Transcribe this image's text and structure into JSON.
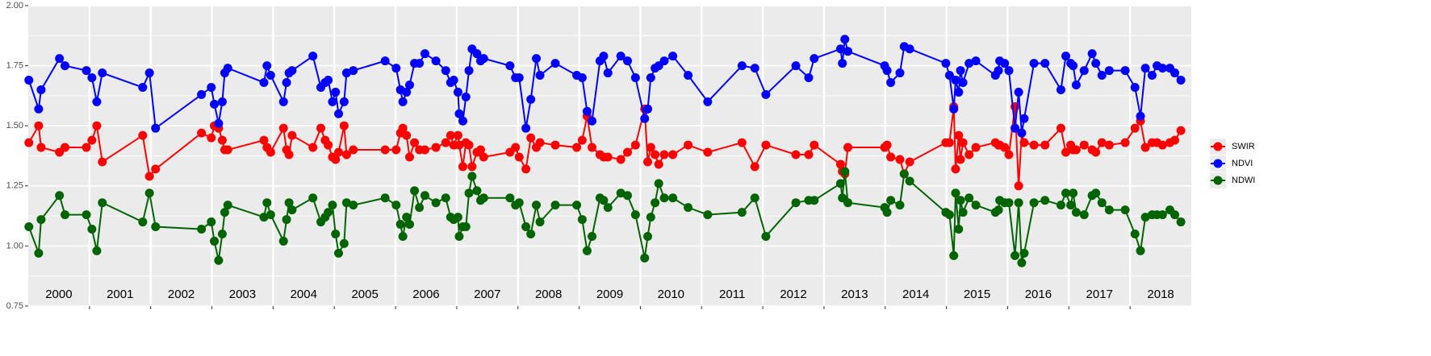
{
  "chart_data": {
    "type": "line",
    "x": [
      2000.01,
      2000.17,
      2000.21,
      2000.51,
      2000.6,
      2000.95,
      2001.04,
      2001.12,
      2001.21,
      2001.87,
      2001.98,
      2002.08,
      2002.83,
      2002.99,
      2003.04,
      2003.11,
      2003.17,
      2003.21,
      2003.26,
      2003.85,
      2003.9,
      2003.96,
      2004.17,
      2004.22,
      2004.26,
      2004.31,
      2004.65,
      2004.78,
      2004.85,
      2004.9,
      2004.97,
      2005.02,
      2005.07,
      2005.16,
      2005.2,
      2005.31,
      2005.83,
      2006.01,
      2006.08,
      2006.12,
      2006.18,
      2006.23,
      2006.31,
      2006.39,
      2006.48,
      2006.66,
      2006.82,
      2006.9,
      2006.95,
      2007.02,
      2007.04,
      2007.1,
      2007.15,
      2007.2,
      2007.25,
      2007.33,
      2007.39,
      2007.44,
      2007.87,
      2007.96,
      2008.02,
      2008.13,
      2008.21,
      2008.3,
      2008.36,
      2008.61,
      2008.96,
      2009.05,
      2009.13,
      2009.21,
      2009.34,
      2009.4,
      2009.47,
      2009.68,
      2009.79,
      2009.92,
      2010.07,
      2010.12,
      2010.17,
      2010.24,
      2010.3,
      2010.39,
      2010.53,
      2010.78,
      2011.1,
      2011.66,
      2011.87,
      2012.05,
      2012.54,
      2012.75,
      2012.84,
      2013.27,
      2013.3,
      2013.34,
      2013.39,
      2013.99,
      2014.03,
      2014.09,
      2014.24,
      2014.31,
      2014.4,
      2014.99,
      2015.05,
      2015.12,
      2015.15,
      2015.2,
      2015.23,
      2015.27,
      2015.37,
      2015.48,
      2015.8,
      2015.85,
      2015.87,
      2015.95,
      2016.02,
      2016.12,
      2016.18,
      2016.23,
      2016.27,
      2016.43,
      2016.61,
      2016.87,
      2016.95,
      2017.03,
      2017.07,
      2017.12,
      2017.25,
      2017.38,
      2017.44,
      2017.54,
      2017.66,
      2017.92,
      2018.08,
      2018.17,
      2018.25,
      2018.36,
      2018.44,
      2018.53,
      2018.65,
      2018.73,
      2018.83
    ],
    "series": [
      {
        "name": "SWIR",
        "color": "#ff0000",
        "values": [
          1.43,
          1.5,
          1.41,
          1.39,
          1.41,
          1.41,
          1.44,
          1.5,
          1.35,
          1.46,
          1.29,
          1.32,
          1.47,
          1.45,
          1.5,
          1.49,
          1.44,
          1.4,
          1.4,
          1.44,
          1.41,
          1.39,
          1.49,
          1.4,
          1.38,
          1.46,
          1.41,
          1.49,
          1.44,
          1.42,
          1.37,
          1.36,
          1.39,
          1.5,
          1.38,
          1.4,
          1.4,
          1.4,
          1.47,
          1.49,
          1.46,
          1.37,
          1.43,
          1.4,
          1.4,
          1.41,
          1.43,
          1.46,
          1.42,
          1.46,
          1.42,
          1.33,
          1.43,
          1.42,
          1.33,
          1.39,
          1.4,
          1.37,
          1.39,
          1.41,
          1.37,
          1.32,
          1.45,
          1.41,
          1.43,
          1.42,
          1.41,
          1.44,
          1.54,
          1.41,
          1.38,
          1.37,
          1.37,
          1.36,
          1.39,
          1.42,
          1.57,
          1.35,
          1.41,
          1.38,
          1.34,
          1.38,
          1.38,
          1.42,
          1.39,
          1.43,
          1.33,
          1.42,
          1.38,
          1.38,
          1.42,
          1.34,
          1.31,
          1.3,
          1.41,
          1.41,
          1.42,
          1.37,
          1.36,
          1.3,
          1.35,
          1.43,
          1.43,
          1.58,
          1.32,
          1.46,
          1.36,
          1.43,
          1.38,
          1.41,
          1.43,
          1.42,
          1.42,
          1.41,
          1.38,
          1.58,
          1.25,
          1.47,
          1.43,
          1.42,
          1.42,
          1.49,
          1.39,
          1.42,
          1.4,
          1.4,
          1.42,
          1.4,
          1.39,
          1.43,
          1.42,
          1.43,
          1.49,
          1.52,
          1.41,
          1.43,
          1.43,
          1.42,
          1.43,
          1.44,
          1.48
        ]
      },
      {
        "name": "NDVI",
        "color": "#0000ff",
        "values": [
          1.69,
          1.57,
          1.65,
          1.78,
          1.75,
          1.73,
          1.7,
          1.6,
          1.72,
          1.66,
          1.72,
          1.49,
          1.63,
          1.66,
          1.59,
          1.51,
          1.6,
          1.72,
          1.74,
          1.68,
          1.75,
          1.71,
          1.6,
          1.68,
          1.72,
          1.73,
          1.79,
          1.66,
          1.68,
          1.69,
          1.6,
          1.64,
          1.55,
          1.6,
          1.72,
          1.73,
          1.77,
          1.74,
          1.65,
          1.6,
          1.64,
          1.67,
          1.76,
          1.76,
          1.8,
          1.77,
          1.73,
          1.68,
          1.69,
          1.64,
          1.55,
          1.52,
          1.62,
          1.73,
          1.82,
          1.8,
          1.77,
          1.78,
          1.75,
          1.7,
          1.7,
          1.49,
          1.61,
          1.78,
          1.71,
          1.76,
          1.71,
          1.7,
          1.56,
          1.52,
          1.77,
          1.79,
          1.72,
          1.79,
          1.77,
          1.7,
          1.53,
          1.57,
          1.7,
          1.74,
          1.75,
          1.77,
          1.79,
          1.71,
          1.6,
          1.75,
          1.74,
          1.63,
          1.75,
          1.7,
          1.78,
          1.82,
          1.76,
          1.86,
          1.81,
          1.75,
          1.73,
          1.68,
          1.72,
          1.83,
          1.82,
          1.76,
          1.71,
          1.57,
          1.69,
          1.64,
          1.73,
          1.68,
          1.76,
          1.77,
          1.71,
          1.73,
          1.77,
          1.76,
          1.73,
          1.49,
          1.64,
          1.47,
          1.53,
          1.76,
          1.76,
          1.65,
          1.79,
          1.76,
          1.75,
          1.67,
          1.73,
          1.8,
          1.76,
          1.71,
          1.73,
          1.73,
          1.66,
          1.54,
          1.74,
          1.71,
          1.75,
          1.74,
          1.74,
          1.72,
          1.69
        ]
      },
      {
        "name": "NDWI",
        "color": "#006400",
        "values": [
          1.08,
          0.97,
          1.11,
          1.21,
          1.13,
          1.13,
          1.07,
          0.98,
          1.18,
          1.1,
          1.22,
          1.08,
          1.07,
          1.1,
          1.02,
          0.94,
          1.05,
          1.14,
          1.17,
          1.12,
          1.18,
          1.13,
          1.02,
          1.11,
          1.18,
          1.15,
          1.2,
          1.1,
          1.12,
          1.14,
          1.17,
          1.05,
          0.97,
          1.01,
          1.18,
          1.17,
          1.2,
          1.17,
          1.09,
          1.04,
          1.12,
          1.09,
          1.23,
          1.16,
          1.21,
          1.18,
          1.2,
          1.12,
          1.11,
          1.12,
          1.04,
          1.08,
          1.08,
          1.22,
          1.29,
          1.23,
          1.19,
          1.2,
          1.2,
          1.17,
          1.18,
          1.08,
          1.05,
          1.17,
          1.1,
          1.17,
          1.17,
          1.11,
          0.98,
          1.04,
          1.2,
          1.19,
          1.16,
          1.22,
          1.21,
          1.13,
          0.95,
          1.04,
          1.12,
          1.18,
          1.26,
          1.2,
          1.2,
          1.16,
          1.13,
          1.14,
          1.2,
          1.04,
          1.18,
          1.19,
          1.19,
          1.26,
          1.2,
          1.31,
          1.18,
          1.16,
          1.14,
          1.19,
          1.17,
          1.3,
          1.27,
          1.14,
          1.13,
          0.96,
          1.22,
          1.07,
          1.19,
          1.14,
          1.2,
          1.17,
          1.14,
          1.15,
          1.19,
          1.18,
          1.18,
          0.96,
          1.18,
          0.93,
          0.97,
          1.18,
          1.19,
          1.17,
          1.22,
          1.17,
          1.22,
          1.14,
          1.13,
          1.21,
          1.22,
          1.18,
          1.15,
          1.15,
          1.05,
          0.98,
          1.12,
          1.13,
          1.13,
          1.13,
          1.15,
          1.13,
          1.1
        ]
      }
    ],
    "xlim": [
      2000,
      2019
    ],
    "xticks": [
      2001,
      2002,
      2003,
      2004,
      2005,
      2006,
      2007,
      2008,
      2009,
      2010,
      2011,
      2012,
      2013,
      2014,
      2015,
      2016,
      2017,
      2018
    ],
    "year_labels": [
      2000,
      2001,
      2002,
      2003,
      2004,
      2005,
      2006,
      2007,
      2008,
      2009,
      2010,
      2011,
      2012,
      2013,
      2014,
      2015,
      2016,
      2017,
      2018
    ],
    "ylim": [
      0.75,
      2.0
    ],
    "yticks": [
      {
        "value": 0.75,
        "label": "0.75"
      },
      {
        "value": 1.0,
        "label": "1.00"
      },
      {
        "value": 1.25,
        "label": "1.25"
      },
      {
        "value": 1.5,
        "label": "1.50"
      },
      {
        "value": 1.75,
        "label": "1.75"
      },
      {
        "value": 2.0,
        "label": "2.00"
      }
    ],
    "grid": true,
    "legend": "right"
  }
}
